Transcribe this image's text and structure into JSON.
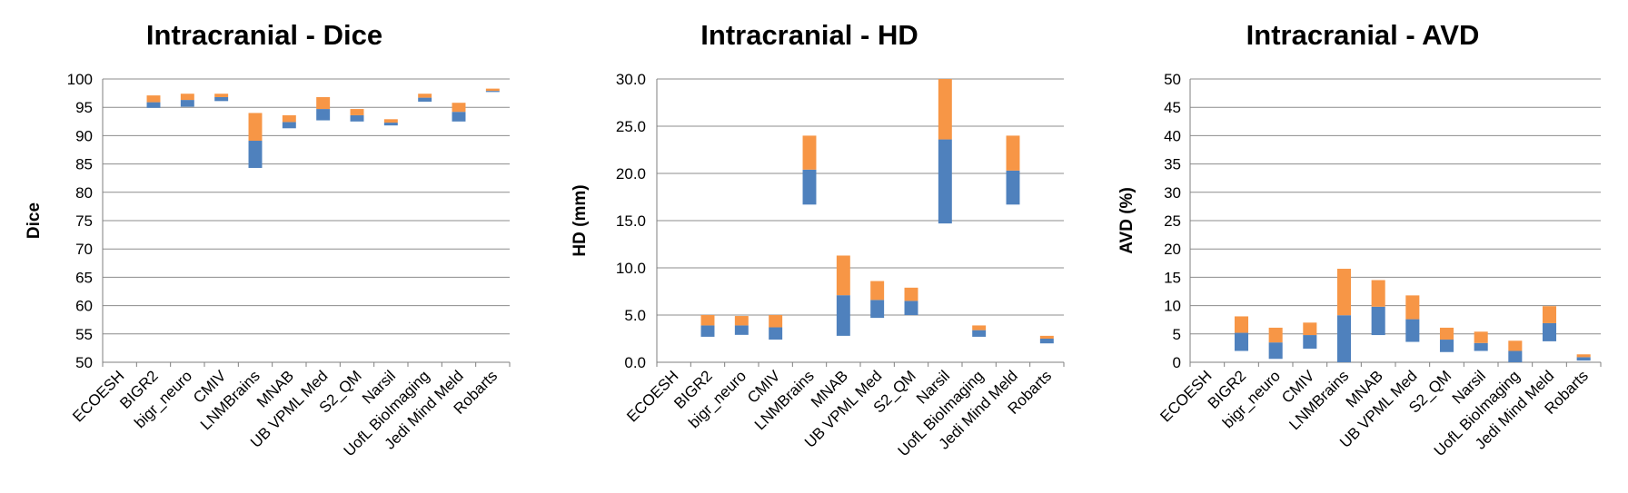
{
  "chart_data": [
    {
      "type": "bar",
      "stacked": "floating",
      "title": "Intracranial - Dice",
      "xlabel": "",
      "ylabel": "Dice",
      "ylim": [
        50,
        100
      ],
      "yticks": [
        "50",
        "55",
        "60",
        "65",
        "70",
        "75",
        "80",
        "85",
        "90",
        "95",
        "100"
      ],
      "grid": true,
      "legend": "none",
      "categories": [
        "ECOESH",
        "BIGR2",
        "bigr_neuro",
        "CMIV",
        "LNMBrains",
        "MNAB",
        "UB VPML Med",
        "S2_QM",
        "Narsil",
        "UofL BioImaging",
        "Jedi Mind Meld",
        "Robarts"
      ],
      "series": [
        {
          "color": "#4f81bd",
          "ranges": [
            null,
            [
              94.9,
              95.9
            ],
            [
              95.1,
              96.3
            ],
            [
              96.1,
              96.8
            ],
            [
              84.3,
              89.1
            ],
            [
              91.3,
              92.4
            ],
            [
              92.7,
              94.7
            ],
            [
              92.5,
              93.6
            ],
            [
              91.8,
              92.3
            ],
            [
              96.0,
              96.7
            ],
            [
              92.5,
              94.2
            ],
            [
              97.7,
              97.9
            ]
          ]
        },
        {
          "color": "#f79646",
          "ranges": [
            null,
            [
              95.9,
              97.1
            ],
            [
              96.3,
              97.4
            ],
            [
              96.8,
              97.4
            ],
            [
              89.1,
              94.0
            ],
            [
              92.4,
              93.6
            ],
            [
              94.7,
              96.8
            ],
            [
              93.6,
              94.7
            ],
            [
              92.3,
              92.9
            ],
            [
              96.7,
              97.4
            ],
            [
              94.2,
              95.8
            ],
            [
              97.9,
              98.3
            ]
          ]
        }
      ]
    },
    {
      "type": "bar",
      "stacked": "floating",
      "title": "Intracranial - HD",
      "xlabel": "",
      "ylabel": "HD (mm)",
      "ylim": [
        0,
        30
      ],
      "yticks": [
        "0.0",
        "5.0",
        "10.0",
        "15.0",
        "20.0",
        "25.0",
        "30.0"
      ],
      "grid": true,
      "legend": "none",
      "categories": [
        "ECOESH",
        "BIGR2",
        "bigr_neuro",
        "CMIV",
        "LNMBrains",
        "MNAB",
        "UB VPML Med",
        "S2_QM",
        "Narsil",
        "UofL BioImaging",
        "Jedi Mind Meld",
        "Robarts"
      ],
      "series": [
        {
          "color": "#4f81bd",
          "ranges": [
            null,
            [
              2.7,
              3.9
            ],
            [
              2.9,
              3.9
            ],
            [
              2.4,
              3.7
            ],
            [
              16.7,
              20.4
            ],
            [
              2.8,
              7.1
            ],
            [
              4.7,
              6.6
            ],
            [
              5.0,
              6.5
            ],
            [
              14.7,
              23.6
            ],
            [
              2.7,
              3.4
            ],
            [
              16.7,
              20.3
            ],
            [
              2.0,
              2.5
            ]
          ]
        },
        {
          "color": "#f79646",
          "ranges": [
            null,
            [
              3.9,
              5.0
            ],
            [
              3.9,
              4.9
            ],
            [
              3.7,
              5.0
            ],
            [
              20.4,
              24.0
            ],
            [
              7.1,
              11.3
            ],
            [
              6.6,
              8.6
            ],
            [
              6.5,
              7.9
            ],
            [
              23.6,
              30.0
            ],
            [
              3.4,
              3.9
            ],
            [
              20.3,
              24.0
            ],
            [
              2.5,
              2.8
            ]
          ]
        }
      ]
    },
    {
      "type": "bar",
      "stacked": "floating",
      "title": "Intracranial - AVD",
      "xlabel": "",
      "ylabel": "AVD (%)",
      "ylim": [
        0,
        50
      ],
      "yticks": [
        "0",
        "5",
        "10",
        "15",
        "20",
        "25",
        "30",
        "35",
        "40",
        "45",
        "50"
      ],
      "grid": true,
      "legend": "none",
      "categories": [
        "ECOESH",
        "BIGR2",
        "bigr_neuro",
        "CMIV",
        "LNMBrains",
        "MNAB",
        "UB VPML Med",
        "S2_QM",
        "Narsil",
        "UofL BioImaging",
        "Jedi Mind Meld",
        "Robarts"
      ],
      "series": [
        {
          "color": "#4f81bd",
          "ranges": [
            null,
            [
              2.0,
              5.2
            ],
            [
              0.6,
              3.5
            ],
            [
              2.4,
              4.8
            ],
            [
              0.0,
              8.3
            ],
            [
              4.8,
              9.8
            ],
            [
              3.6,
              7.6
            ],
            [
              1.8,
              4.0
            ],
            [
              2.0,
              3.4
            ],
            [
              0.0,
              2.0
            ],
            [
              3.7,
              6.9
            ],
            [
              0.3,
              0.9
            ]
          ]
        },
        {
          "color": "#f79646",
          "ranges": [
            null,
            [
              5.2,
              8.1
            ],
            [
              3.5,
              6.1
            ],
            [
              4.8,
              7.0
            ],
            [
              8.3,
              16.5
            ],
            [
              9.8,
              14.5
            ],
            [
              7.6,
              11.8
            ],
            [
              4.0,
              6.1
            ],
            [
              3.4,
              5.4
            ],
            [
              2.0,
              3.8
            ],
            [
              6.9,
              9.9
            ],
            [
              0.9,
              1.4
            ]
          ]
        }
      ]
    }
  ]
}
